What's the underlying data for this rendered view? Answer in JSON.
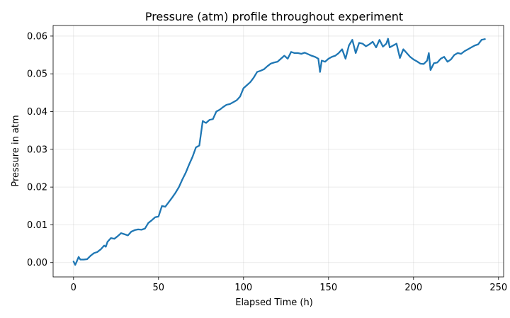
{
  "chart_data": {
    "type": "line",
    "title": "Pressure (atm) profile throughout experiment",
    "xlabel": "Elapsed Time (h)",
    "ylabel": "Pressure in atm",
    "xlim": [
      -12,
      253
    ],
    "ylim": [
      -0.0038,
      0.0628
    ],
    "xticks": [
      0,
      50,
      100,
      150,
      200,
      250
    ],
    "yticks": [
      0.0,
      0.01,
      0.02,
      0.03,
      0.04,
      0.05,
      0.06
    ],
    "xtick_labels": [
      "0",
      "50",
      "100",
      "150",
      "200",
      "250"
    ],
    "ytick_labels": [
      "0.00",
      "0.01",
      "0.02",
      "0.03",
      "0.04",
      "0.05",
      "0.06"
    ],
    "grid": true,
    "colors": {
      "series": "#1f77b4"
    },
    "series": [
      {
        "x": [
          0,
          1,
          2,
          3,
          4,
          6,
          8,
          10,
          12,
          14,
          16,
          18,
          19,
          20,
          21,
          22,
          24,
          26,
          28,
          30,
          32,
          34,
          36,
          38,
          40,
          42,
          44,
          46,
          48,
          50,
          52,
          54,
          56,
          58,
          60,
          62,
          64,
          66,
          68,
          70,
          72,
          74,
          76,
          77,
          78,
          80,
          82,
          84,
          86,
          88,
          90,
          92,
          94,
          96,
          98,
          100,
          102,
          104,
          106,
          108,
          110,
          112,
          114,
          116,
          118,
          120,
          122,
          124,
          126,
          128,
          130,
          132,
          134,
          136,
          138,
          140,
          142,
          144,
          145,
          146,
          148,
          150,
          152,
          154,
          156,
          158,
          160,
          162,
          164,
          166,
          168,
          170,
          172,
          174,
          176,
          178,
          180,
          182,
          184,
          185,
          186,
          188,
          190,
          192,
          194,
          196,
          198,
          200,
          202,
          204,
          206,
          208,
          209,
          210,
          212,
          214,
          216,
          218,
          220,
          222,
          224,
          226,
          228,
          230,
          232,
          234,
          236,
          238,
          240,
          242
        ],
        "y": [
          0.0003,
          -0.0006,
          0.0004,
          0.0015,
          0.0008,
          0.0008,
          0.0009,
          0.0018,
          0.0025,
          0.0028,
          0.0035,
          0.0045,
          0.0042,
          0.0055,
          0.006,
          0.0065,
          0.0063,
          0.007,
          0.0078,
          0.0075,
          0.0072,
          0.0082,
          0.0086,
          0.0088,
          0.0087,
          0.009,
          0.0105,
          0.0112,
          0.012,
          0.0122,
          0.015,
          0.0148,
          0.016,
          0.0172,
          0.0185,
          0.02,
          0.022,
          0.0238,
          0.026,
          0.028,
          0.0305,
          0.031,
          0.0375,
          0.0372,
          0.037,
          0.0378,
          0.038,
          0.04,
          0.0405,
          0.0412,
          0.0418,
          0.042,
          0.0425,
          0.043,
          0.044,
          0.0462,
          0.047,
          0.0478,
          0.049,
          0.0505,
          0.0508,
          0.0512,
          0.052,
          0.0527,
          0.053,
          0.0532,
          0.054,
          0.0548,
          0.054,
          0.0558,
          0.0555,
          0.0555,
          0.0553,
          0.0556,
          0.0552,
          0.0548,
          0.0545,
          0.054,
          0.0505,
          0.0535,
          0.0532,
          0.054,
          0.0545,
          0.0548,
          0.0555,
          0.0565,
          0.054,
          0.0575,
          0.059,
          0.0555,
          0.0582,
          0.058,
          0.0573,
          0.0578,
          0.0585,
          0.057,
          0.059,
          0.0572,
          0.058,
          0.0593,
          0.057,
          0.0575,
          0.058,
          0.0542,
          0.0565,
          0.0555,
          0.0545,
          0.0538,
          0.0533,
          0.0527,
          0.0526,
          0.0535,
          0.0555,
          0.051,
          0.0528,
          0.053,
          0.054,
          0.0545,
          0.0532,
          0.0538,
          0.055,
          0.0555,
          0.0553,
          0.056,
          0.0565,
          0.057,
          0.0575,
          0.0578,
          0.059,
          0.0592
        ]
      }
    ]
  }
}
